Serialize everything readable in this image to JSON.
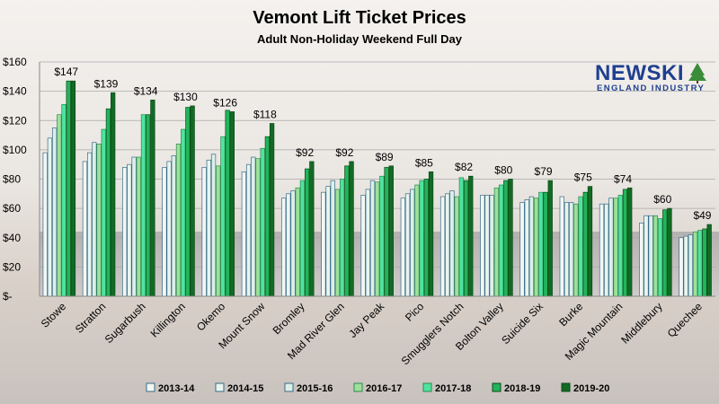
{
  "chart_data": {
    "type": "bar",
    "title": "Vemont Lift Ticket Prices",
    "subtitle": "Adult Non-Holiday Weekend Full Day",
    "xlabel": "",
    "ylabel": "",
    "ylim": [
      0,
      160
    ],
    "yticks": [
      "$-",
      "$20",
      "$40",
      "$60",
      "$80",
      "$100",
      "$120",
      "$140",
      "$160"
    ],
    "grid": true,
    "legend_position": "bottom",
    "categories": [
      "Stowe",
      "Stratton",
      "Sugarbush",
      "Killington",
      "Okemo",
      "Mount Snow",
      "Bromley",
      "Mad River Glen",
      "Jay Peak",
      "Pico",
      "Smugglers Notch",
      "Bolton Valley",
      "Suicide Six",
      "Burke",
      "Magic Mountain",
      "Middlebury",
      "Quechee"
    ],
    "data_labels": [
      "$147",
      "$139",
      "$134",
      "$130",
      "$126",
      "$118",
      "$92",
      "$92",
      "$89",
      "$85",
      "$82",
      "$80",
      "$79",
      "$75",
      "$74",
      "$60",
      "$49"
    ],
    "series": [
      {
        "name": "2013-14",
        "color": "#f2f7f4",
        "values": [
          98,
          92,
          88,
          88,
          88,
          85,
          67,
          71,
          69,
          67,
          68,
          69,
          64,
          68,
          63,
          50,
          40
        ]
      },
      {
        "name": "2014-15",
        "color": "#e8f4ee",
        "values": [
          108,
          98,
          90,
          92,
          93,
          90,
          70,
          75,
          73,
          70,
          70,
          69,
          66,
          64,
          63,
          55,
          41
        ]
      },
      {
        "name": "2015-16",
        "color": "#dcefe8",
        "values": [
          115,
          105,
          95,
          96,
          97,
          95,
          72,
          79,
          79,
          73,
          72,
          69,
          68,
          64,
          67,
          55,
          42
        ]
      },
      {
        "name": "2016-17",
        "color": "#9ee09a",
        "values": [
          124,
          104,
          95,
          104,
          89,
          94,
          74,
          73,
          78,
          76,
          68,
          74,
          67,
          63,
          67,
          55,
          44
        ]
      },
      {
        "name": "2017-18",
        "color": "#4fe3a0",
        "values": [
          131,
          114,
          124,
          114,
          109,
          101,
          79,
          80,
          82,
          79,
          81,
          76,
          71,
          68,
          69,
          53,
          45
        ]
      },
      {
        "name": "2018-19",
        "color": "#22b45a",
        "values": [
          147,
          128,
          124,
          129,
          127,
          109,
          87,
          89,
          88,
          80,
          79,
          79,
          71,
          71,
          73,
          59,
          46
        ]
      },
      {
        "name": "2019-20",
        "color": "#126b24",
        "values": [
          147,
          139,
          134,
          130,
          126,
          118,
          92,
          92,
          89,
          85,
          82,
          80,
          79,
          75,
          74,
          60,
          49
        ]
      }
    ]
  },
  "logo": {
    "line1": "NEWSKI",
    "line2": "ENGLAND INDUSTRY",
    "color": "#1f3f8f",
    "tree_color": "#3a8c3a"
  }
}
